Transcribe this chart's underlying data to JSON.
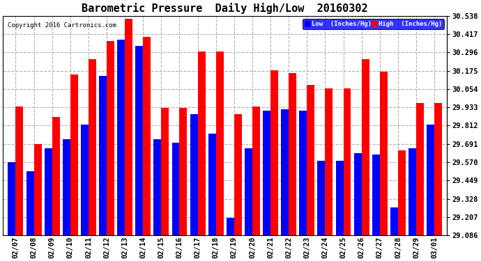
{
  "title": "Barometric Pressure  Daily High/Low  20160302",
  "copyright": "Copyright 2016 Cartronics.com",
  "background_color": "#ffffff",
  "plot_background": "#ffffff",
  "dates": [
    "02/07",
    "02/08",
    "02/09",
    "02/10",
    "02/11",
    "02/12",
    "02/13",
    "02/14",
    "02/15",
    "02/16",
    "02/17",
    "02/18",
    "02/19",
    "02/20",
    "02/21",
    "02/22",
    "02/23",
    "02/24",
    "02/25",
    "02/26",
    "02/27",
    "02/28",
    "02/29",
    "03/01"
  ],
  "low": [
    29.57,
    29.51,
    29.66,
    29.72,
    29.82,
    30.14,
    30.38,
    30.34,
    29.72,
    29.7,
    29.89,
    29.76,
    29.2,
    29.66,
    29.91,
    29.92,
    29.91,
    29.58,
    29.58,
    29.63,
    29.62,
    29.27,
    29.66,
    29.82
  ],
  "high": [
    29.94,
    29.69,
    29.87,
    30.15,
    30.25,
    30.37,
    30.52,
    30.4,
    29.93,
    29.93,
    30.3,
    30.3,
    29.89,
    29.94,
    30.18,
    30.16,
    30.08,
    30.06,
    30.06,
    30.25,
    30.17,
    29.65,
    29.96,
    29.96
  ],
  "low_color": "#0000ff",
  "high_color": "#ff0000",
  "ylim_min": 29.086,
  "ylim_max": 30.538,
  "yticks": [
    29.086,
    29.207,
    29.328,
    29.449,
    29.57,
    29.691,
    29.812,
    29.933,
    30.054,
    30.175,
    30.296,
    30.417,
    30.538
  ],
  "grid_color": "#b0b0b0",
  "title_fontsize": 11,
  "tick_fontsize": 7.5,
  "legend_low_label": "Low  (Inches/Hg)",
  "legend_high_label": "High  (Inches/Hg)",
  "figwidth": 6.9,
  "figheight": 3.75,
  "dpi": 100
}
